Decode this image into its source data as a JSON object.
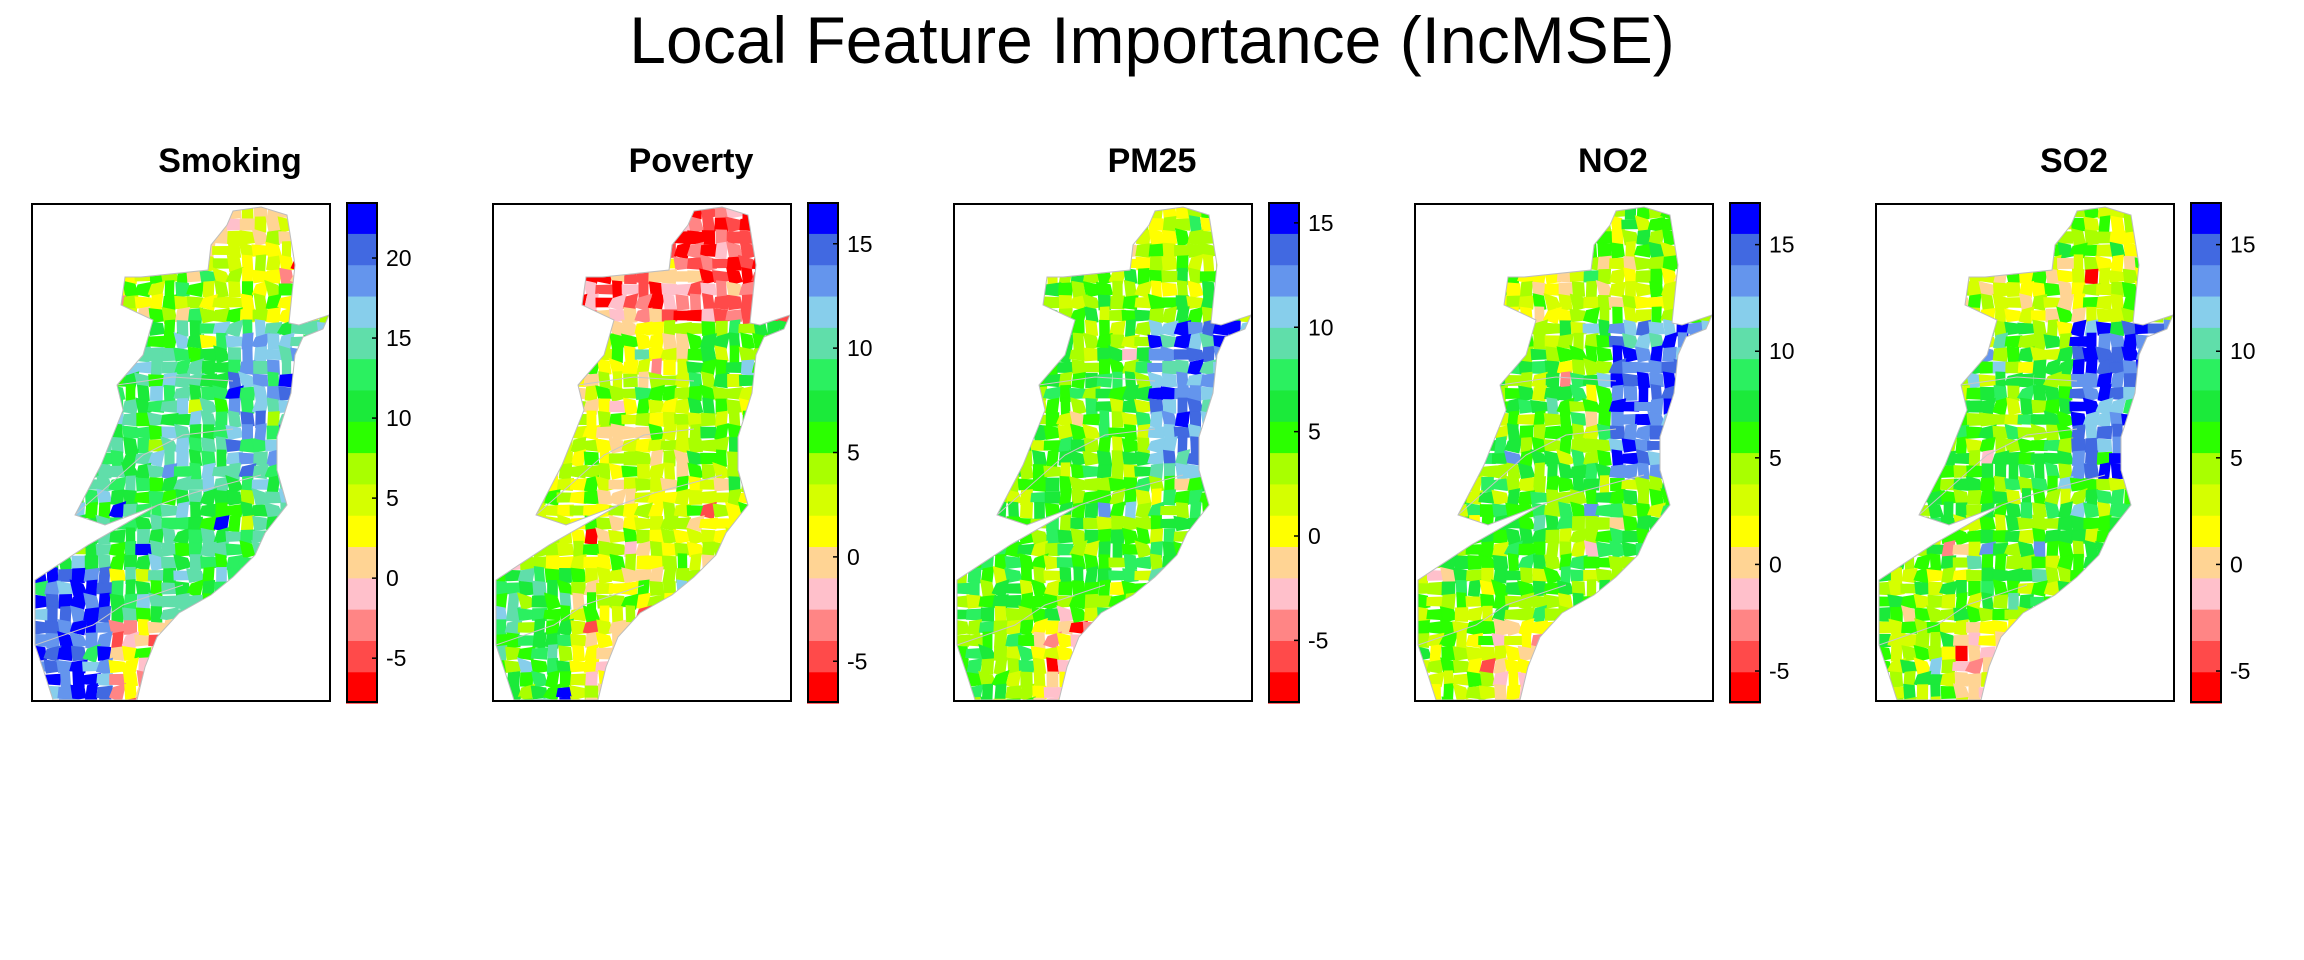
{
  "title": "Local Feature Importance (IncMSE)",
  "palette": [
    "#ff0000",
    "#ff4a4a",
    "#ff8585",
    "#ffc0cb",
    "#ffd494",
    "#ffff00",
    "#d5ff00",
    "#a9ff00",
    "#2bff00",
    "#1bea3a",
    "#2bf060",
    "#60deaa",
    "#87ceeb",
    "#6495ed",
    "#4169e1",
    "#0000ff"
  ],
  "panels": [
    {
      "name": "Smoking",
      "legend": {
        "min": -7.8,
        "max": 23.5,
        "ticks": [
          -5,
          0,
          5,
          10,
          15,
          20
        ]
      },
      "regions": {
        "north": 6,
        "north_edge": 5,
        "mid": 10,
        "chesapeake": 12,
        "southwest": 14,
        "south": 3
      }
    },
    {
      "name": "Poverty",
      "legend": {
        "min": -7,
        "max": 17,
        "ticks": [
          -5,
          0,
          5,
          10,
          15
        ]
      },
      "regions": {
        "north": 2,
        "north_edge": 1,
        "mid": 6,
        "chesapeake": 8,
        "southwest": 9,
        "south": 5
      }
    },
    {
      "name": "PM25",
      "legend": {
        "min": -8,
        "max": 16,
        "ticks": [
          -5,
          0,
          5,
          10,
          15
        ]
      },
      "regions": {
        "north": 7,
        "north_edge": 6,
        "mid": 8,
        "chesapeake": 13,
        "southwest": 8,
        "south": 4
      }
    },
    {
      "name": "NO2",
      "legend": {
        "min": -6.5,
        "max": 17,
        "ticks": [
          -5,
          0,
          5,
          10,
          15
        ]
      },
      "regions": {
        "north": 6,
        "north_edge": 7,
        "mid": 8,
        "chesapeake": 14,
        "southwest": 7,
        "south": 4
      }
    },
    {
      "name": "SO2",
      "legend": {
        "min": -6.5,
        "max": 17,
        "ticks": [
          -5,
          0,
          5,
          10,
          15
        ]
      },
      "regions": {
        "north": 6,
        "north_edge": 7,
        "mid": 8,
        "chesapeake": 14,
        "southwest": 7,
        "south": 4
      }
    }
  ]
}
